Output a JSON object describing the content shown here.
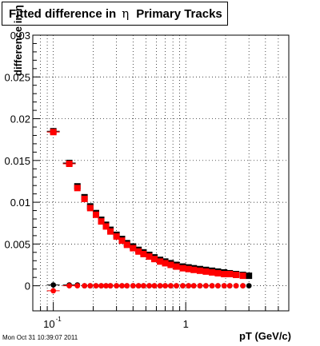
{
  "header": {
    "title_prefix": "Fitted difference in",
    "title_symbol": "η",
    "title_suffix": "Primary Tracks"
  },
  "footer": {
    "timestamp": "Mon Oct 31 10:39:07 2011"
  },
  "chart_data": {
    "type": "scatter",
    "title": "Fitted difference in η Primary Tracks",
    "xlabel": "pT (GeV/c)",
    "ylabel": "difference in η",
    "xscale": "log",
    "xlim": [
      0.07,
      6
    ],
    "ylim": [
      -0.003,
      0.03
    ],
    "grid": true,
    "xtick_labels": [
      {
        "value": 0.1,
        "base": "10",
        "exp": "-1"
      },
      {
        "value": 1,
        "base": "1",
        "exp": ""
      }
    ],
    "yticks": [
      {
        "value": 0,
        "label": "0"
      },
      {
        "value": 0.005,
        "label": "0.005"
      },
      {
        "value": 0.01,
        "label": "0.01"
      },
      {
        "value": 0.015,
        "label": "0.015"
      },
      {
        "value": 0.02,
        "label": "0.02"
      },
      {
        "value": 0.025,
        "label": "0.025"
      },
      {
        "value": 0.03,
        "label": "0.03"
      }
    ],
    "series": [
      {
        "color": "#000000",
        "x": [
          0.1,
          0.132,
          0.152,
          0.172,
          0.19,
          0.21,
          0.23,
          0.25,
          0.27,
          0.3,
          0.33,
          0.36,
          0.4,
          0.44,
          0.48,
          0.53,
          0.58,
          0.64,
          0.7,
          0.77,
          0.85,
          0.95,
          1.05,
          1.15,
          1.28,
          1.42,
          1.58,
          1.75,
          1.95,
          2.15,
          2.4,
          2.7,
          3.0
        ],
        "y": [
          0.0185,
          0.0147,
          0.0119,
          0.0106,
          0.0095,
          0.0087,
          0.0079,
          0.0073,
          0.0067,
          0.0061,
          0.0056,
          0.0051,
          0.0047,
          0.0043,
          0.004,
          0.0037,
          0.0034,
          0.0031,
          0.0029,
          0.0027,
          0.0025,
          0.0023,
          0.0022,
          0.0021,
          0.002,
          0.0019,
          0.0018,
          0.0017,
          0.0016,
          0.0015,
          0.0014,
          0.0013,
          0.0012
        ]
      },
      {
        "color": "#ff0000",
        "x": [
          0.1,
          0.132,
          0.152,
          0.172,
          0.19,
          0.21,
          0.23,
          0.25,
          0.27,
          0.3,
          0.33,
          0.36,
          0.4,
          0.44,
          0.48,
          0.53,
          0.58,
          0.64,
          0.7,
          0.77,
          0.85,
          0.95,
          1.05,
          1.15,
          1.28,
          1.42,
          1.58,
          1.75,
          1.95,
          2.15,
          2.4,
          2.7
        ],
        "y": [
          0.0184,
          0.0146,
          0.0117,
          0.0104,
          0.0093,
          0.0085,
          0.0077,
          0.0071,
          0.0065,
          0.0059,
          0.0054,
          0.0049,
          0.0045,
          0.0041,
          0.0038,
          0.0035,
          0.0032,
          0.0029,
          0.0027,
          0.0025,
          0.0023,
          0.0021,
          0.002,
          0.0019,
          0.0018,
          0.0017,
          0.0016,
          0.0015,
          0.0014,
          0.0014,
          0.0013,
          0.0012
        ]
      },
      {
        "color": "#000000",
        "x": [
          0.1,
          0.132,
          0.152,
          0.172,
          0.19,
          0.21,
          0.23,
          0.25,
          0.27,
          0.3,
          0.33,
          0.36,
          0.4,
          0.44,
          0.48,
          0.53,
          0.58,
          0.64,
          0.7,
          0.77,
          0.85,
          0.95,
          1.05,
          1.15,
          1.28,
          1.42,
          1.58,
          1.75,
          1.95,
          2.15,
          2.4,
          2.7,
          3.0
        ],
        "y": [
          0.0001,
          0.0001,
          0.0001,
          0.0,
          0.0,
          0.0,
          0.0,
          0.0,
          0.0,
          0.0,
          0.0,
          0.0,
          0.0,
          0.0,
          0.0,
          0.0,
          0.0,
          0.0,
          0.0,
          0.0,
          0.0,
          0.0,
          0.0,
          0.0,
          0.0,
          0.0,
          0.0,
          0.0,
          0.0,
          0.0,
          0.0,
          0.0,
          0.0
        ]
      },
      {
        "color": "#ff0000",
        "x": [
          0.1,
          0.132,
          0.152,
          0.172,
          0.19,
          0.21,
          0.23,
          0.25,
          0.27,
          0.3,
          0.33,
          0.36,
          0.4,
          0.44,
          0.48,
          0.53,
          0.58,
          0.64,
          0.7,
          0.77,
          0.85,
          0.95,
          1.05,
          1.15,
          1.28,
          1.42,
          1.58,
          1.75,
          1.95,
          2.15,
          2.4,
          2.7
        ],
        "y": [
          -0.0006,
          0.0,
          0.0,
          0.0,
          0.0,
          0.0,
          0.0,
          0.0,
          0.0,
          0.0,
          0.0,
          0.0,
          0.0,
          0.0,
          0.0,
          0.0,
          0.0,
          0.0,
          0.0,
          0.0,
          0.0,
          0.0,
          0.0,
          0.0,
          0.0,
          0.0,
          0.0,
          0.0,
          0.0,
          0.0,
          0.0,
          0.0
        ]
      }
    ]
  }
}
